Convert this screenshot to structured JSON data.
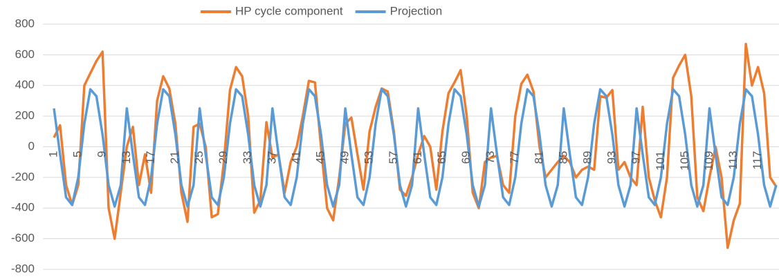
{
  "chart_data": {
    "type": "line",
    "categories": [
      "1",
      null,
      null,
      null,
      "5",
      null,
      null,
      null,
      "9",
      null,
      null,
      null,
      "13",
      null,
      null,
      null,
      "17",
      null,
      null,
      null,
      "21",
      null,
      null,
      null,
      "25",
      null,
      null,
      null,
      "29",
      null,
      null,
      null,
      "33",
      null,
      null,
      null,
      "37",
      null,
      null,
      null,
      "41",
      null,
      null,
      null,
      "45",
      null,
      null,
      null,
      "49",
      null,
      null,
      null,
      "53",
      null,
      null,
      null,
      "57",
      null,
      null,
      null,
      "61",
      null,
      null,
      null,
      "65",
      null,
      null,
      null,
      "69",
      null,
      null,
      null,
      "73",
      null,
      null,
      null,
      "77",
      null,
      null,
      null,
      "81",
      null,
      null,
      null,
      "85",
      null,
      null,
      null,
      "89",
      null,
      null,
      null,
      "93",
      null,
      null,
      null,
      "97",
      null,
      null,
      null,
      "101",
      null,
      null,
      null,
      "105",
      null,
      null,
      null,
      "109",
      null,
      null,
      null,
      "113",
      null,
      null,
      null,
      "117",
      null,
      null,
      null
    ],
    "series": [
      {
        "name": "HP cycle component",
        "color": "#ed7d31",
        "values": [
          60,
          140,
          -250,
          -380,
          -250,
          400,
          480,
          560,
          620,
          -400,
          -600,
          -300,
          0,
          130,
          -250,
          -50,
          -300,
          300,
          460,
          380,
          150,
          -300,
          -490,
          130,
          150,
          0,
          -460,
          -440,
          -100,
          370,
          520,
          460,
          200,
          -430,
          -350,
          160,
          -70,
          -50,
          -300,
          -100,
          0,
          200,
          430,
          420,
          0,
          -400,
          -480,
          -200,
          150,
          190,
          -50,
          -280,
          100,
          260,
          380,
          360,
          100,
          -280,
          -320,
          -200,
          -50,
          70,
          0,
          -280,
          100,
          350,
          420,
          500,
          200,
          -300,
          -400,
          -100,
          -70,
          -60,
          -250,
          -300,
          200,
          410,
          470,
          360,
          0,
          -200,
          -150,
          -100,
          -60,
          -100,
          -200,
          -150,
          -130,
          -150,
          330,
          320,
          370,
          -150,
          -100,
          -200,
          -250,
          260,
          -200,
          -350,
          -460,
          -200,
          450,
          530,
          600,
          330,
          -330,
          -420,
          -200,
          0,
          -200,
          -660,
          -480,
          -370,
          670,
          400,
          520,
          350,
          -200,
          -260
        ]
      },
      {
        "name": "Projection",
        "color": "#5b9bd5",
        "values": [
          250,
          -50,
          -330,
          -380,
          -200,
          150,
          375,
          330,
          80,
          -250,
          -390,
          -250,
          250,
          -50,
          -330,
          -380,
          -200,
          150,
          375,
          330,
          80,
          -250,
          -390,
          -250,
          250,
          -50,
          -330,
          -380,
          -200,
          150,
          375,
          330,
          80,
          -250,
          -390,
          -250,
          250,
          -50,
          -330,
          -380,
          -200,
          150,
          375,
          330,
          80,
          -250,
          -390,
          -250,
          250,
          -50,
          -330,
          -380,
          -200,
          150,
          375,
          330,
          80,
          -250,
          -390,
          -250,
          250,
          -50,
          -330,
          -380,
          -200,
          150,
          375,
          330,
          80,
          -250,
          -390,
          -250,
          250,
          -50,
          -330,
          -380,
          -200,
          150,
          375,
          330,
          80,
          -250,
          -390,
          -250,
          250,
          -50,
          -330,
          -380,
          -200,
          150,
          375,
          330,
          80,
          -250,
          -390,
          -250,
          250,
          -50,
          -330,
          -380,
          -200,
          150,
          375,
          330,
          80,
          -250,
          -390,
          -250,
          250,
          -50,
          -330,
          -380,
          -200,
          150,
          375,
          330,
          80,
          -250,
          -390,
          -250
        ]
      }
    ],
    "ylim": [
      -800,
      800
    ],
    "yticks": [
      -800,
      -600,
      -400,
      -200,
      0,
      200,
      400,
      600,
      800
    ],
    "grid": true,
    "legend": "top"
  }
}
